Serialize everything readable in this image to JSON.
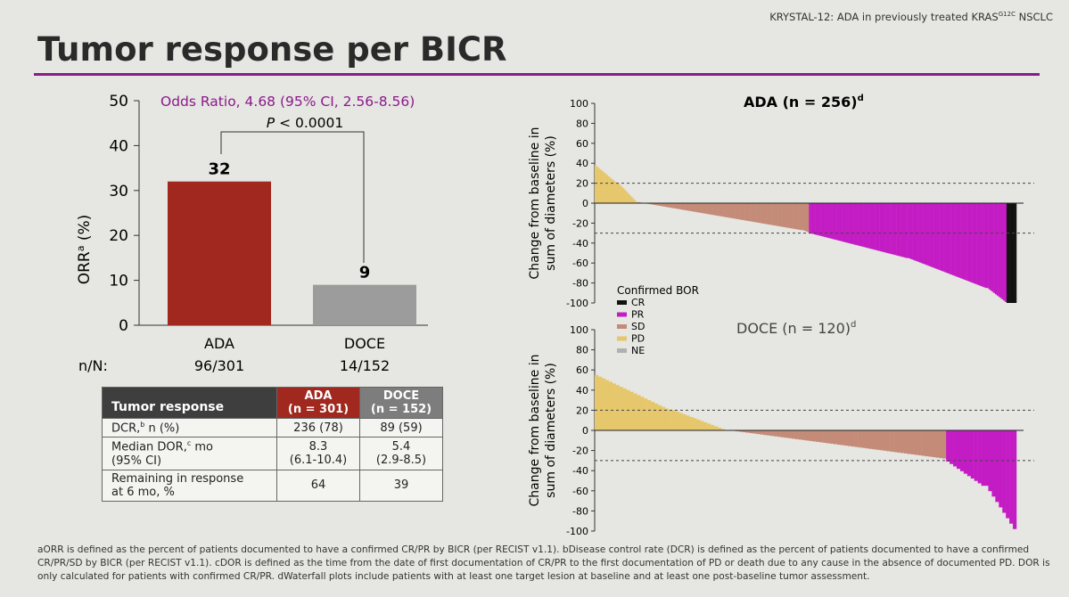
{
  "header": {
    "trial_note_prefix": "KRYSTAL-12: ADA in previously treated KRAS",
    "trial_note_sup": "G12C",
    "trial_note_suffix": " NSCLC",
    "title": "Tumor response per BICR"
  },
  "colors": {
    "accent": "#8b1a8b",
    "ada": "#a0281f",
    "doce": "#9c9c9c",
    "cr": "#111111",
    "pr": "#c41cc4",
    "sd": "#c48c78",
    "pd": "#e6c76c",
    "ne": "#b0b0b0"
  },
  "chart_data": [
    {
      "type": "bar",
      "title": "",
      "ylabel": "ORR",
      "ylabel_sup": "a",
      "ylabel_suffix": " (%)",
      "ylim": [
        0,
        50
      ],
      "yticks": [
        0,
        10,
        20,
        30,
        40,
        50
      ],
      "categories": [
        "ADA",
        "DOCE"
      ],
      "values": [
        32,
        9
      ],
      "value_labels": [
        "32",
        "9"
      ],
      "nn_label": "n/N:",
      "nn_values": [
        "96/301",
        "14/152"
      ],
      "annotation_odds": "Odds Ratio, 4.68 (95% CI, 2.56-8.56)",
      "annotation_p_italic": "P",
      "annotation_p_rest": " < 0.0001"
    },
    {
      "type": "bar",
      "title": "ADA (n = 256)",
      "title_sup": "d",
      "ylabel_line1": "Change from baseline in",
      "ylabel_line2": "sum of diameters (%)",
      "ylim": [
        -100,
        100
      ],
      "yticks": [
        100,
        80,
        60,
        40,
        20,
        0,
        -20,
        -40,
        -60,
        -80,
        -100
      ],
      "reference_lines": [
        20,
        -30
      ],
      "n": 256,
      "segments": [
        {
          "category": "PD",
          "from": 38,
          "to": 20,
          "count": 14
        },
        {
          "category": "PD",
          "from": 20,
          "to": 1,
          "count": 12
        },
        {
          "category": "SD",
          "from": 1,
          "to": -27,
          "count": 100
        },
        {
          "category": "PR",
          "from": -30,
          "to": -55,
          "count": 60
        },
        {
          "category": "SD",
          "from": -27,
          "to": -29,
          "count": 4
        },
        {
          "category": "PR",
          "from": -55,
          "to": -85,
          "count": 48
        },
        {
          "category": "PR",
          "from": -85,
          "to": -99,
          "count": 12
        },
        {
          "category": "CR",
          "from": -100,
          "to": -100,
          "count": 6
        }
      ],
      "legend_title": "Confirmed BOR",
      "legend": [
        "CR",
        "PR",
        "SD",
        "PD",
        "NE"
      ]
    },
    {
      "type": "bar",
      "title": "DOCE (n = 120)",
      "title_sup": "d",
      "ylabel_line1": "Change from baseline in",
      "ylabel_line2": "sum of diameters (%)",
      "ylim": [
        -100,
        100
      ],
      "yticks": [
        100,
        80,
        60,
        40,
        20,
        0,
        -20,
        -40,
        -60,
        -80,
        -100
      ],
      "reference_lines": [
        20,
        -30
      ],
      "n": 120,
      "segments": [
        {
          "category": "PD",
          "from": 55,
          "to": 20,
          "count": 22
        },
        {
          "category": "PD",
          "from": 20,
          "to": 0,
          "count": 16
        },
        {
          "category": "SD",
          "from": 0,
          "to": -28,
          "count": 62
        },
        {
          "category": "PR",
          "from": -31,
          "to": -55,
          "count": 11
        },
        {
          "category": "PR",
          "from": -55,
          "to": -98,
          "count": 9
        }
      ]
    }
  ],
  "table": {
    "header_label": "Tumor response",
    "col_ada_line1": "ADA",
    "col_ada_line2": "(n = 301)",
    "col_doce_line1": "DOCE",
    "col_doce_line2": "(n = 152)",
    "rows": [
      {
        "label_a": "DCR,",
        "label_sup": "b",
        "label_b": " n (%)",
        "label_c": "",
        "ada": "236 (78)",
        "ada2": "",
        "doce": "89 (59)",
        "doce2": ""
      },
      {
        "label_a": "Median DOR,",
        "label_sup": "c",
        "label_b": " mo",
        "label_c": "(95% CI)",
        "ada": "8.3",
        "ada2": "(6.1-10.4)",
        "doce": "5.4",
        "doce2": "(2.9-8.5)"
      },
      {
        "label_a": "Remaining in response",
        "label_sup": "",
        "label_b": "",
        "label_c": "at 6 mo, %",
        "ada": "64",
        "ada2": "",
        "doce": "39",
        "doce2": ""
      }
    ]
  },
  "footnote": "aORR is defined as the percent of patients documented to have a confirmed CR/PR by BICR (per RECIST v1.1). bDisease control rate (DCR) is defined as the percent of patients documented to have a confirmed CR/PR/SD by BICR (per RECIST v1.1). cDOR is defined as the time from the date of first documentation of CR/PR to the first documentation of PD or death due to any cause in the absence of documented PD. DOR is only calculated for patients with confirmed CR/PR. dWaterfall plots include patients with at least one target lesion at baseline and at least one post-baseline tumor assessment."
}
